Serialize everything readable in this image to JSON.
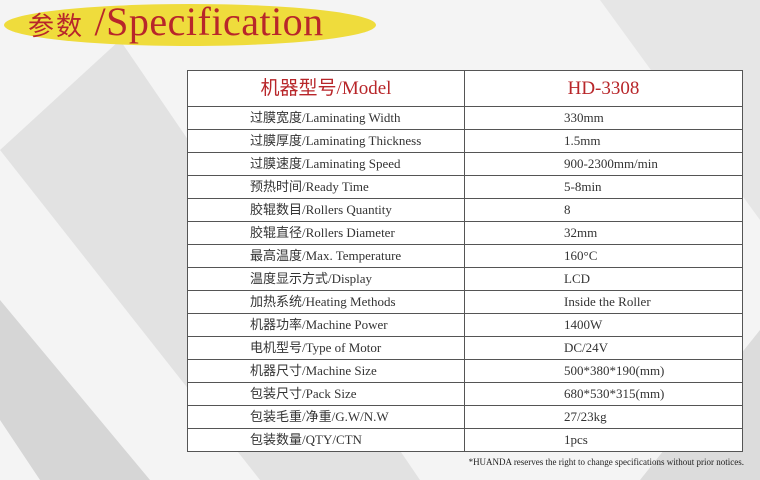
{
  "title": {
    "cn": "参数",
    "sep": "/",
    "en": "Specification"
  },
  "header": {
    "key": "机器型号/Model",
    "value": "HD-3308"
  },
  "rows": [
    {
      "key": "过膜宽度/Laminating Width",
      "value": "330mm"
    },
    {
      "key": "过膜厚度/Laminating Thickness",
      "value": "1.5mm"
    },
    {
      "key": "过膜速度/Laminating Speed",
      "value": "900-2300mm/min"
    },
    {
      "key": "预热时间/Ready Time",
      "value": "5-8min"
    },
    {
      "key": "胶辊数目/Rollers Quantity",
      "value": "8"
    },
    {
      "key": "胶辊直径/Rollers Diameter",
      "value": "32mm"
    },
    {
      "key": "最高温度/Max. Temperature",
      "value": "160°C"
    },
    {
      "key": "温度显示方式/Display",
      "value": "LCD"
    },
    {
      "key": "加热系统/Heating Methods",
      "value": "Inside the Roller"
    },
    {
      "key": "机器功率/Machine Power",
      "value": "1400W"
    },
    {
      "key": "电机型号/Type of Motor",
      "value": "DC/24V"
    },
    {
      "key": "机器尺寸/Machine Size",
      "value": "500*380*190(mm)"
    },
    {
      "key": "包装尺寸/Pack Size",
      "value": "680*530*315(mm)"
    },
    {
      "key": "包装毛重/净重/G.W/N.W",
      "value": "27/23kg"
    },
    {
      "key": "包装数量/QTY/CTN",
      "value": "1pcs"
    }
  ],
  "note": "*HUANDA reserves the right to change specifications without prior notices.",
  "colors": {
    "accent": "#b8262a",
    "highlight": "#efdc3c"
  }
}
